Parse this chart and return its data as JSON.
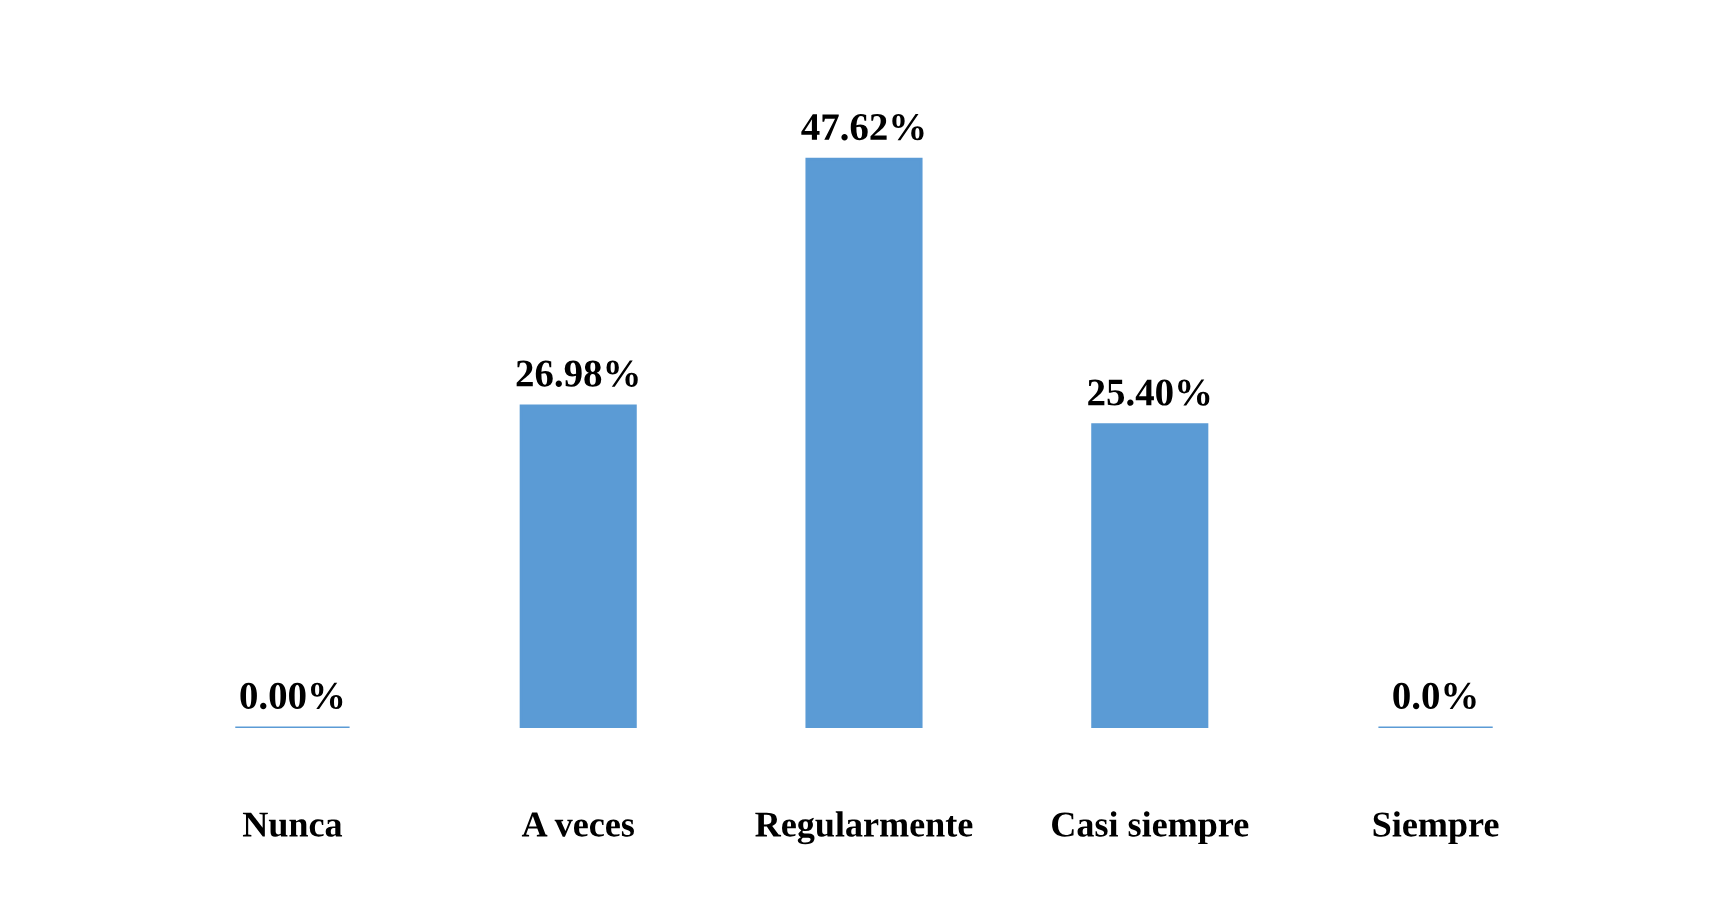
{
  "chart_data": {
    "type": "bar",
    "categories": [
      "Nunca",
      "A veces",
      "Regularmente",
      "Casi siempre",
      "Siempre"
    ],
    "values": [
      0,
      26.98,
      47.62,
      25.4,
      0
    ],
    "value_labels": [
      "0.00%",
      "26.98%",
      "47.62%",
      "25.40%",
      "0.0%"
    ],
    "color": "#5b9bd5",
    "grid": false,
    "legend": false
  }
}
